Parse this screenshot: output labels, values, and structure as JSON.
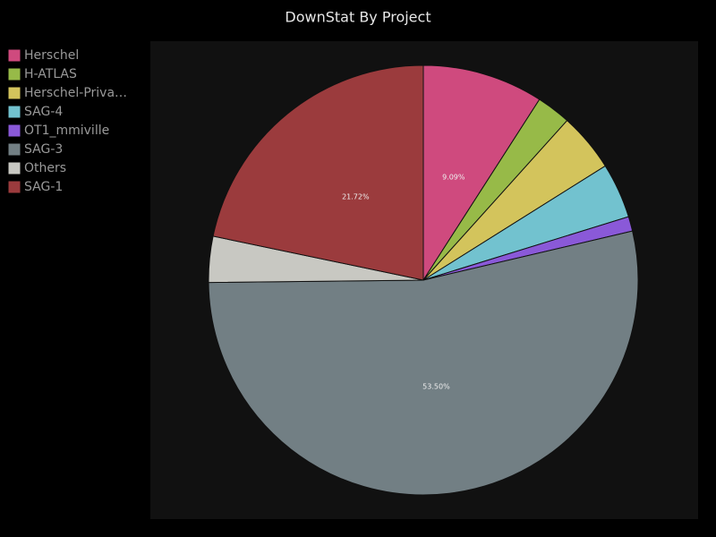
{
  "chart_data": {
    "type": "pie",
    "title": "DownStat By Project",
    "categories": [
      "Herschel",
      "H-ATLAS",
      "Herschel-Priva…",
      "SAG-4",
      "OT1_mmiville",
      "SAG-3",
      "Others",
      "SAG-1"
    ],
    "values": [
      9.09,
      2.58,
      4.41,
      4.15,
      1.1,
      53.5,
      3.45,
      21.72
    ],
    "value_labels": [
      "9.09%",
      null,
      null,
      null,
      null,
      "53.50%",
      null,
      "21.72%"
    ],
    "colors": [
      "#cf4a7e",
      "#97ba48",
      "#d3c45c",
      "#72c2cf",
      "#8a59d8",
      "#727f84",
      "#c8c8c2",
      "#9b3b3d"
    ],
    "legend": "left"
  }
}
